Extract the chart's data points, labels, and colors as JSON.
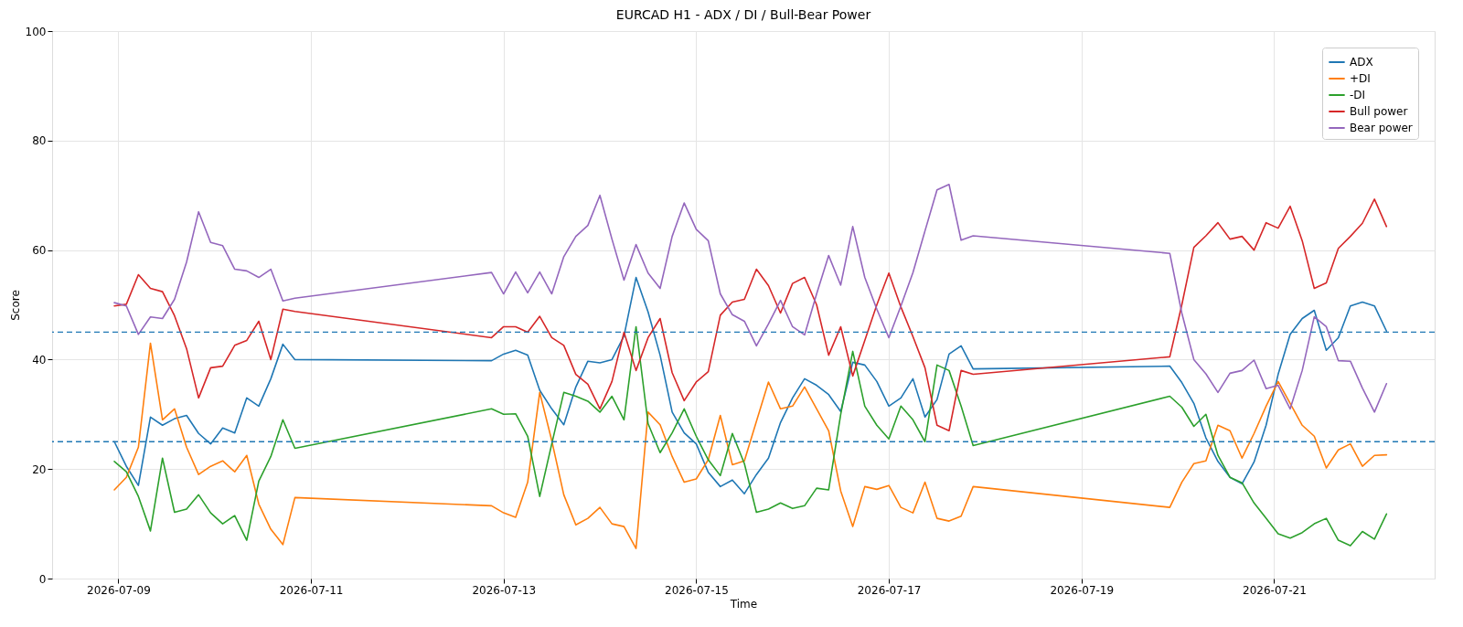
{
  "chart_data": {
    "type": "line",
    "title": "EURCAD H1 - ADX / DI / Bull-Bear Power",
    "xlabel": "Time",
    "ylabel": "Score",
    "x": [
      "2026-07-08T23:00",
      "2026-07-09T02:00",
      "2026-07-09T05:00",
      "2026-07-09T08:00",
      "2026-07-09T11:00",
      "2026-07-09T14:00",
      "2026-07-09T17:00",
      "2026-07-09T20:00",
      "2026-07-09T23:00",
      "2026-07-10T02:00",
      "2026-07-10T05:00",
      "2026-07-10T08:00",
      "2026-07-10T11:00",
      "2026-07-10T14:00",
      "2026-07-10T17:00",
      "2026-07-10T20:00",
      "2026-07-12T21:00",
      "2026-07-13T00:00",
      "2026-07-13T03:00",
      "2026-07-13T06:00",
      "2026-07-13T09:00",
      "2026-07-13T12:00",
      "2026-07-13T15:00",
      "2026-07-13T18:00",
      "2026-07-13T21:00",
      "2026-07-14T00:00",
      "2026-07-14T03:00",
      "2026-07-14T06:00",
      "2026-07-14T09:00",
      "2026-07-14T12:00",
      "2026-07-14T15:00",
      "2026-07-14T18:00",
      "2026-07-14T21:00",
      "2026-07-15T00:00",
      "2026-07-15T03:00",
      "2026-07-15T06:00",
      "2026-07-15T09:00",
      "2026-07-15T12:00",
      "2026-07-15T15:00",
      "2026-07-15T18:00",
      "2026-07-15T21:00",
      "2026-07-16T00:00",
      "2026-07-16T03:00",
      "2026-07-16T06:00",
      "2026-07-16T09:00",
      "2026-07-16T12:00",
      "2026-07-16T15:00",
      "2026-07-16T18:00",
      "2026-07-16T21:00",
      "2026-07-17T00:00",
      "2026-07-17T03:00",
      "2026-07-17T06:00",
      "2026-07-17T09:00",
      "2026-07-17T12:00",
      "2026-07-17T15:00",
      "2026-07-17T18:00",
      "2026-07-17T21:00",
      "2026-07-19T22:00",
      "2026-07-20T01:00",
      "2026-07-20T04:00",
      "2026-07-20T07:00",
      "2026-07-20T10:00",
      "2026-07-20T13:00",
      "2026-07-20T16:00",
      "2026-07-20T19:00",
      "2026-07-20T22:00",
      "2026-07-21T01:00",
      "2026-07-21T04:00",
      "2026-07-21T07:00",
      "2026-07-21T10:00",
      "2026-07-21T13:00",
      "2026-07-21T16:00",
      "2026-07-21T19:00",
      "2026-07-21T22:00",
      "2026-07-22T01:00",
      "2026-07-22T04:00"
    ],
    "series": [
      {
        "name": "ADX",
        "color": "#1f77b4",
        "values": [
          25,
          20.5,
          17,
          29.5,
          28,
          29.2,
          29.8,
          26.5,
          24.6,
          27.5,
          26.6,
          33,
          31.5,
          36.5,
          42.8,
          40,
          39.8,
          41,
          41.7,
          40.8,
          34.4,
          31,
          28.1,
          35,
          39.7,
          39.4,
          40,
          44.3,
          55,
          48.7,
          40.8,
          30.4,
          26.6,
          24.6,
          19.4,
          16.8,
          18,
          15.5,
          19,
          22,
          28.5,
          33,
          36.5,
          35.3,
          33.6,
          30.5,
          39.5,
          39,
          36,
          31.5,
          33,
          36.5,
          29.5,
          32.7,
          41,
          42.5,
          38.3,
          38.8,
          35.8,
          32,
          25.7,
          21.4,
          18.5,
          17.3,
          21.3,
          28,
          37.3,
          44.6,
          47.5,
          49,
          41.7,
          44,
          49.8,
          50.5,
          49.8,
          45.2
        ]
      },
      {
        "name": "+DI",
        "color": "#ff7f0e",
        "values": [
          16.2,
          18.5,
          24,
          43,
          29,
          31,
          24,
          19,
          20.5,
          21.5,
          19.5,
          22.5,
          13.6,
          9,
          6.2,
          14.8,
          13.3,
          12,
          11.2,
          17.6,
          34,
          25.2,
          15.3,
          9.8,
          11,
          13,
          10,
          9.5,
          5.5,
          30.4,
          28.1,
          22.3,
          17.6,
          18.2,
          21.7,
          29.8,
          20.8,
          21.5,
          28.7,
          35.9,
          31,
          31.5,
          35,
          31,
          27,
          16,
          9.5,
          16.8,
          16.3,
          17,
          13,
          12,
          17.6,
          11,
          10.5,
          11.4,
          16.8,
          13,
          17.6,
          21,
          21.5,
          28,
          27,
          22,
          26.5,
          31.5,
          36,
          32,
          28,
          26,
          20.2,
          23.5,
          24.6,
          20.5,
          22.5,
          22.6
        ]
      },
      {
        "name": "-DI",
        "color": "#2ca02c",
        "values": [
          21.4,
          19.5,
          15,
          8.7,
          22,
          12.1,
          12.7,
          15.3,
          12,
          10,
          11.5,
          7,
          17.8,
          22.3,
          29,
          23.8,
          31,
          30,
          30.1,
          26,
          15,
          24.6,
          34,
          33.3,
          32.4,
          30.4,
          33.3,
          29,
          46,
          28.3,
          23,
          26.6,
          31,
          26,
          21.7,
          18.8,
          26.5,
          21,
          12.1,
          12.7,
          13.8,
          12.8,
          13.3,
          16.5,
          16.2,
          30,
          41.5,
          31.5,
          28,
          25.5,
          31.5,
          29,
          25,
          39,
          38,
          31.5,
          24.3,
          33.3,
          31.3,
          27.8,
          30,
          22.5,
          18.5,
          17.5,
          13.8,
          11,
          8.2,
          7.4,
          8.4,
          10,
          11,
          7,
          6,
          8.6,
          7.2,
          11.8
        ]
      },
      {
        "name": "Bull power",
        "color": "#d62728",
        "values": [
          49.8,
          50.1,
          55.5,
          53,
          52.4,
          48,
          42,
          33,
          38.5,
          38.8,
          42.6,
          43.5,
          47,
          40,
          49.2,
          48.8,
          44,
          46,
          46,
          45,
          47.9,
          44,
          42.6,
          37.3,
          35.5,
          31,
          36,
          45,
          38,
          44,
          47.5,
          37.6,
          32.5,
          35.9,
          37.8,
          48.1,
          50.5,
          51,
          56.5,
          53.5,
          48.5,
          53.9,
          55,
          50,
          40.8,
          46,
          37,
          43.5,
          50,
          55.8,
          49.6,
          44.2,
          38.5,
          28,
          27,
          38,
          37.3,
          40.5,
          50,
          60.5,
          62.6,
          65,
          62,
          62.5,
          60,
          65,
          64,
          68,
          61.7,
          53,
          54,
          60.3,
          62.5,
          64.9,
          69.3,
          64.3
        ]
      },
      {
        "name": "Bear power",
        "color": "#9467bd",
        "values": [
          50.4,
          49.8,
          44.6,
          47.8,
          47.5,
          51,
          57.8,
          67,
          61.4,
          60.8,
          56.5,
          56.2,
          55,
          56.5,
          50.7,
          51.2,
          55.9,
          52,
          56,
          52.2,
          56,
          52,
          58.8,
          62.5,
          64.5,
          70,
          62,
          54.5,
          61,
          55.8,
          53,
          62.5,
          68.6,
          63.8,
          61.7,
          52,
          48.2,
          47,
          42.5,
          46.5,
          50.8,
          46,
          44.5,
          52,
          59,
          53.6,
          64.3,
          55,
          49.2,
          44,
          49.8,
          55.9,
          63.5,
          71,
          72,
          61.8,
          62.6,
          59.4,
          48.5,
          40,
          37.4,
          34,
          37.5,
          38,
          39.9,
          34.7,
          35.3,
          31,
          38,
          47.8,
          46,
          39.8,
          39.7,
          34.8,
          30.4,
          35.6
        ]
      }
    ],
    "xlim": [
      "2026-07-08T07:30",
      "2026-07-22T16:00"
    ],
    "xticks": [
      "2026-07-09",
      "2026-07-11",
      "2026-07-13",
      "2026-07-15",
      "2026-07-17",
      "2026-07-19",
      "2026-07-21"
    ],
    "ylim": [
      0,
      100
    ],
    "yticks": [
      0,
      20,
      40,
      60,
      80,
      100
    ],
    "ref_lines": [
      {
        "axis": "y",
        "value": 45,
        "color": "#1f77b4",
        "line_style": "dashed"
      },
      {
        "axis": "y",
        "value": 25,
        "color": "#1f77b4",
        "line_style": "dashed"
      }
    ],
    "grid": true,
    "legend": "top right",
    "line_style": "solid",
    "marker": "none"
  }
}
